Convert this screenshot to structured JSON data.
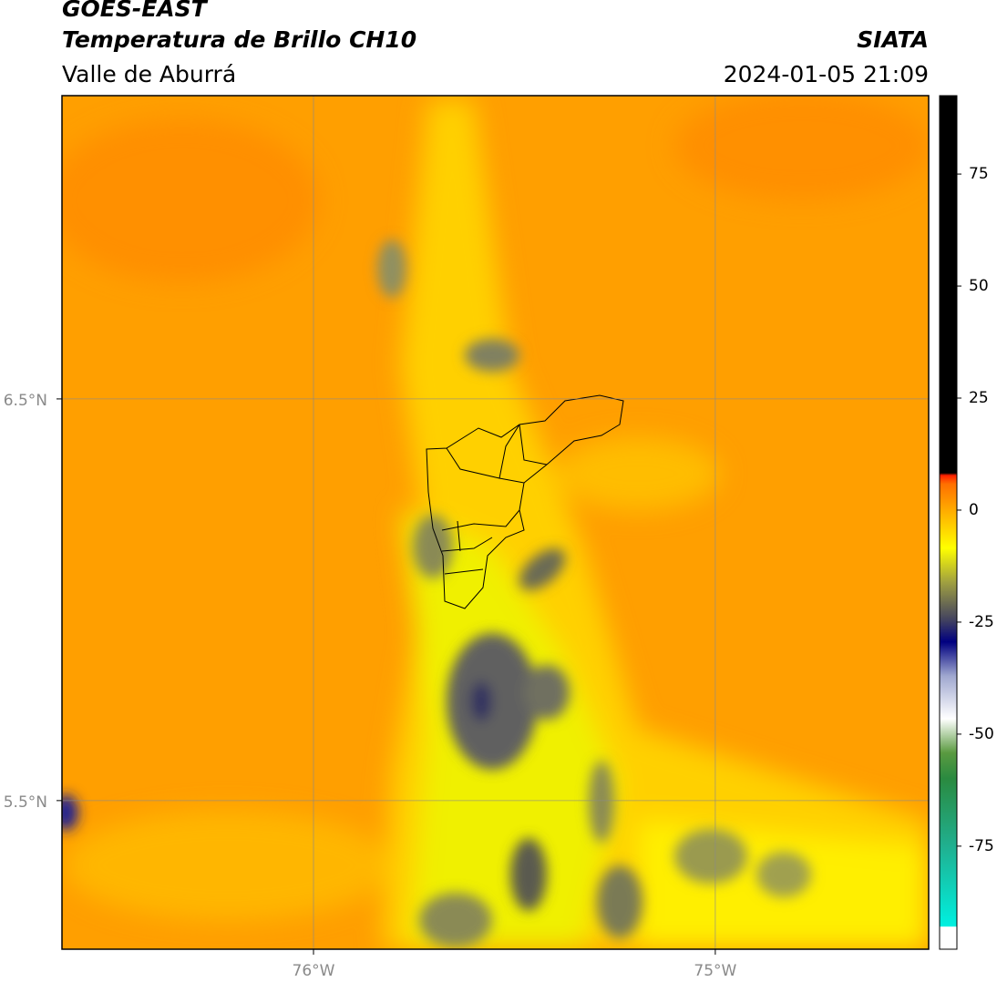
{
  "header": {
    "title": "GOES-EAST",
    "subtitle": "Temperatura de Brillo CH10",
    "region": "Valle de Aburrá",
    "source": "SIATA",
    "datetime": "2024-01-05 21:09"
  },
  "map": {
    "xlim": [
      -76.626,
      -74.469
    ],
    "ylim": [
      5.13,
      7.255
    ],
    "xticks": [
      {
        "value": -76,
        "label": "76°W"
      },
      {
        "value": -75,
        "label": "75°W"
      }
    ],
    "yticks": [
      {
        "value": 6.5,
        "label": "6.5°N"
      },
      {
        "value": 5.5,
        "label": "5.5°N"
      }
    ],
    "grid": true
  },
  "colorbar": {
    "lim": [
      -98,
      92.5
    ],
    "ticks": [
      75,
      50,
      25,
      0,
      -25,
      -50,
      -75
    ]
  }
}
